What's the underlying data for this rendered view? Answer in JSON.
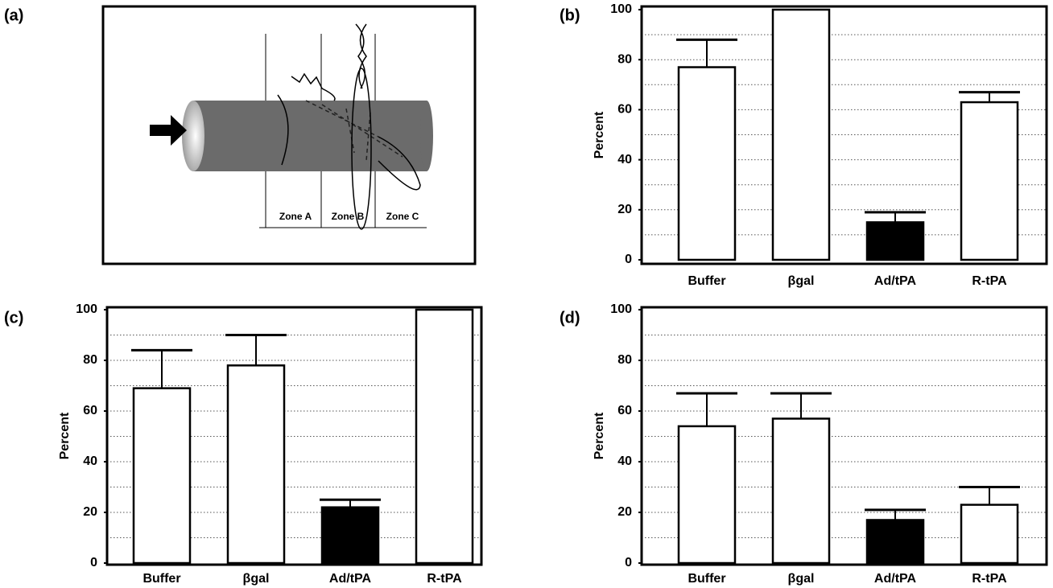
{
  "labels": [
    "(a)",
    "(b)",
    "(c)",
    "(d)"
  ],
  "diagram": {
    "zones": [
      "Zone A",
      "Zone B",
      "Zone C"
    ]
  },
  "chart_data": [
    {
      "type": "bar",
      "ylabel": "Percent",
      "categories": [
        "Buffer",
        "βgal",
        "Ad/tPA",
        "R-tPA"
      ],
      "values": [
        77,
        100,
        15,
        63
      ],
      "errors": [
        11,
        null,
        4,
        4
      ],
      "colors": [
        "#ffffff",
        "#ffffff",
        "#000000",
        "#ffffff"
      ],
      "ylim": [
        0,
        100
      ],
      "yticks": [
        0,
        20,
        40,
        60,
        80,
        100
      ],
      "grid_lines": [
        10,
        20,
        30,
        40,
        50,
        60,
        70,
        80,
        90
      ]
    },
    {
      "type": "bar",
      "ylabel": "Percent",
      "categories": [
        "Buffer",
        "βgal",
        "Ad/tPA",
        "R-tPA"
      ],
      "values": [
        69,
        78,
        22,
        100
      ],
      "errors": [
        15,
        12,
        3,
        null
      ],
      "colors": [
        "#ffffff",
        "#ffffff",
        "#000000",
        "#ffffff"
      ],
      "ylim": [
        0,
        100
      ],
      "yticks": [
        0,
        20,
        40,
        60,
        80,
        100
      ],
      "grid_lines": [
        10,
        20,
        30,
        40,
        50,
        60,
        70,
        80,
        90
      ]
    },
    {
      "type": "bar",
      "ylabel": "Percent",
      "categories": [
        "Buffer",
        "βgal",
        "Ad/tPA",
        "R-tPA"
      ],
      "values": [
        54,
        57,
        17,
        23
      ],
      "errors": [
        13,
        10,
        4,
        7
      ],
      "colors": [
        "#ffffff",
        "#ffffff",
        "#000000",
        "#ffffff"
      ],
      "ylim": [
        0,
        100
      ],
      "yticks": [
        0,
        20,
        40,
        60,
        80,
        100
      ],
      "grid_lines": [
        10,
        20,
        30,
        40,
        50,
        60,
        70,
        80,
        90
      ]
    }
  ]
}
